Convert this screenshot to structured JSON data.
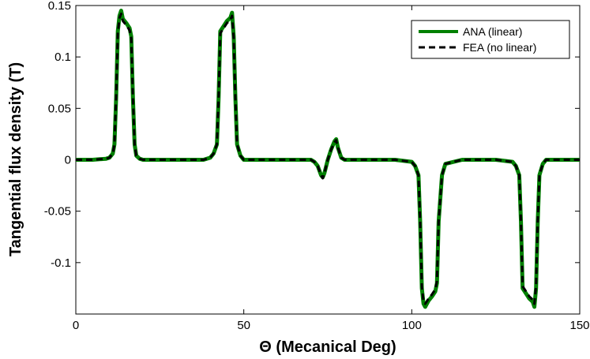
{
  "chart_data": {
    "type": "line",
    "title": "",
    "xlabel": "Θ (Mecanical Deg)",
    "ylabel": "Tangential flux density (T)",
    "xlim": [
      0,
      150
    ],
    "ylim": [
      -0.15,
      0.15
    ],
    "xticks": [
      "0",
      "50",
      "100",
      "150"
    ],
    "yticks": [
      "0.15",
      "0.1",
      "0.05",
      "0",
      "-0.05",
      "-0.1"
    ],
    "grid": false,
    "legend_position": "top-right",
    "series": [
      {
        "name": "ANA (linear)",
        "color": "#008000",
        "style": "solid",
        "x": [
          0,
          5,
          9,
          10,
          11,
          11.5,
          12,
          12.5,
          13,
          13.5,
          14,
          15,
          16,
          16.5,
          17,
          17.5,
          18,
          19,
          20,
          25,
          30,
          38,
          40,
          41,
          42,
          42.5,
          43,
          44,
          45,
          46,
          46.5,
          47,
          47.5,
          48,
          49,
          50,
          55,
          60,
          65,
          70,
          71,
          72,
          73,
          73.5,
          74,
          75,
          76,
          77,
          77.5,
          78,
          79,
          80,
          85,
          95,
          100,
          101,
          102,
          102.5,
          103,
          103.5,
          104,
          105,
          106,
          107,
          107.5,
          108,
          109,
          110,
          115,
          120,
          125,
          130,
          131,
          132,
          132.5,
          133,
          134,
          135,
          136,
          136.5,
          137,
          137.5,
          138,
          139,
          140,
          145,
          150
        ],
        "y": [
          0,
          0,
          0.001,
          0.002,
          0.006,
          0.015,
          0.06,
          0.125,
          0.14,
          0.145,
          0.137,
          0.133,
          0.128,
          0.12,
          0.06,
          0.015,
          0.004,
          0.001,
          0,
          0,
          0,
          0,
          0.002,
          0.006,
          0.015,
          0.06,
          0.125,
          0.13,
          0.135,
          0.138,
          0.143,
          0.12,
          0.06,
          0.015,
          0.004,
          0,
          0,
          0,
          0,
          0,
          -0.002,
          -0.006,
          -0.015,
          -0.017,
          -0.013,
          0,
          0.01,
          0.018,
          0.02,
          0.012,
          0.002,
          0,
          0,
          0,
          -0.002,
          -0.006,
          -0.015,
          -0.06,
          -0.125,
          -0.14,
          -0.143,
          -0.137,
          -0.133,
          -0.128,
          -0.12,
          -0.06,
          -0.015,
          -0.004,
          0,
          0,
          0,
          -0.002,
          -0.006,
          -0.015,
          -0.06,
          -0.125,
          -0.13,
          -0.135,
          -0.138,
          -0.143,
          -0.125,
          -0.06,
          -0.015,
          -0.004,
          0,
          0,
          0
        ]
      },
      {
        "name": "FEA (no linear)",
        "color": "#000000",
        "style": "dashed",
        "x": [
          0,
          5,
          9,
          10,
          11,
          11.5,
          12,
          12.5,
          13,
          13.5,
          14,
          15,
          16,
          16.5,
          17,
          17.5,
          18,
          19,
          20,
          25,
          30,
          38,
          40,
          41,
          42,
          42.5,
          43,
          44,
          45,
          46,
          46.5,
          47,
          47.5,
          48,
          49,
          50,
          55,
          60,
          65,
          70,
          71,
          72,
          73,
          73.5,
          74,
          75,
          76,
          77,
          77.5,
          78,
          79,
          80,
          85,
          95,
          100,
          101,
          102,
          102.5,
          103,
          103.5,
          104,
          105,
          106,
          107,
          107.5,
          108,
          109,
          110,
          115,
          120,
          125,
          130,
          131,
          132,
          132.5,
          133,
          134,
          135,
          136,
          136.5,
          137,
          137.5,
          138,
          139,
          140,
          145,
          150
        ],
        "y": [
          0,
          0,
          0.001,
          0.002,
          0.006,
          0.015,
          0.06,
          0.123,
          0.138,
          0.142,
          0.135,
          0.131,
          0.126,
          0.118,
          0.06,
          0.015,
          0.004,
          0.001,
          0,
          0,
          0,
          0,
          0.002,
          0.006,
          0.015,
          0.06,
          0.123,
          0.128,
          0.133,
          0.136,
          0.14,
          0.118,
          0.06,
          0.015,
          0.004,
          0,
          0,
          0,
          0,
          0,
          -0.002,
          -0.006,
          -0.015,
          -0.018,
          -0.013,
          0,
          0.01,
          0.017,
          0.019,
          0.012,
          0.002,
          0,
          0,
          0,
          -0.002,
          -0.006,
          -0.015,
          -0.06,
          -0.123,
          -0.138,
          -0.14,
          -0.135,
          -0.131,
          -0.126,
          -0.118,
          -0.06,
          -0.015,
          -0.004,
          0,
          0,
          0,
          -0.002,
          -0.006,
          -0.015,
          -0.06,
          -0.123,
          -0.128,
          -0.133,
          -0.136,
          -0.14,
          -0.123,
          -0.06,
          -0.015,
          -0.004,
          0,
          0,
          0
        ]
      }
    ]
  }
}
